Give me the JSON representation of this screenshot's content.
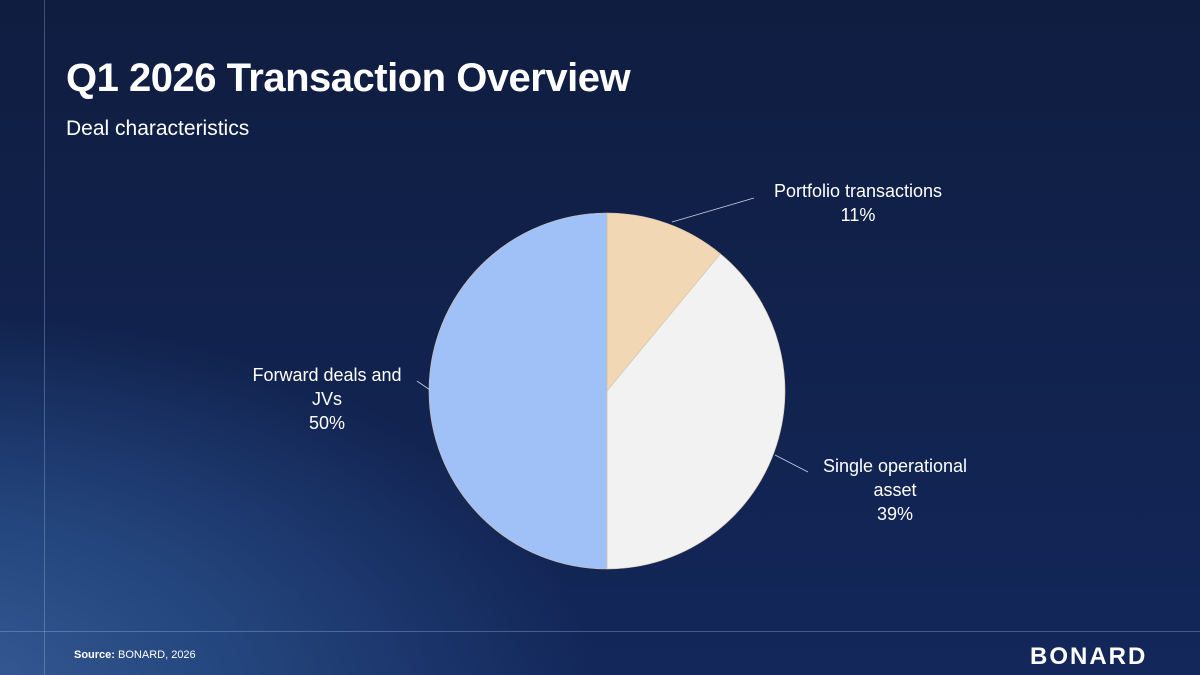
{
  "header": {
    "title": "Q1 2026 Transaction Overview",
    "subtitle": "Deal characteristics"
  },
  "chart_data": {
    "type": "pie",
    "title": "",
    "slices": [
      {
        "label_lines": [
          "Portfolio transactions"
        ],
        "value": 11,
        "value_label": "11%",
        "color": "#f2d7b5"
      },
      {
        "label_lines": [
          "Single operational",
          "asset"
        ],
        "value": 39,
        "value_label": "39%",
        "color": "#f2f2f2"
      },
      {
        "label_lines": [
          "Forward deals and",
          "JVs"
        ],
        "value": 50,
        "value_label": "50%",
        "color": "#a0c0f8"
      }
    ],
    "start_angle_deg": 0,
    "direction": "clockwise"
  },
  "footer": {
    "source_prefix": "Source:",
    "source_text": " BONARD, 2026",
    "logo": "BONARD"
  }
}
